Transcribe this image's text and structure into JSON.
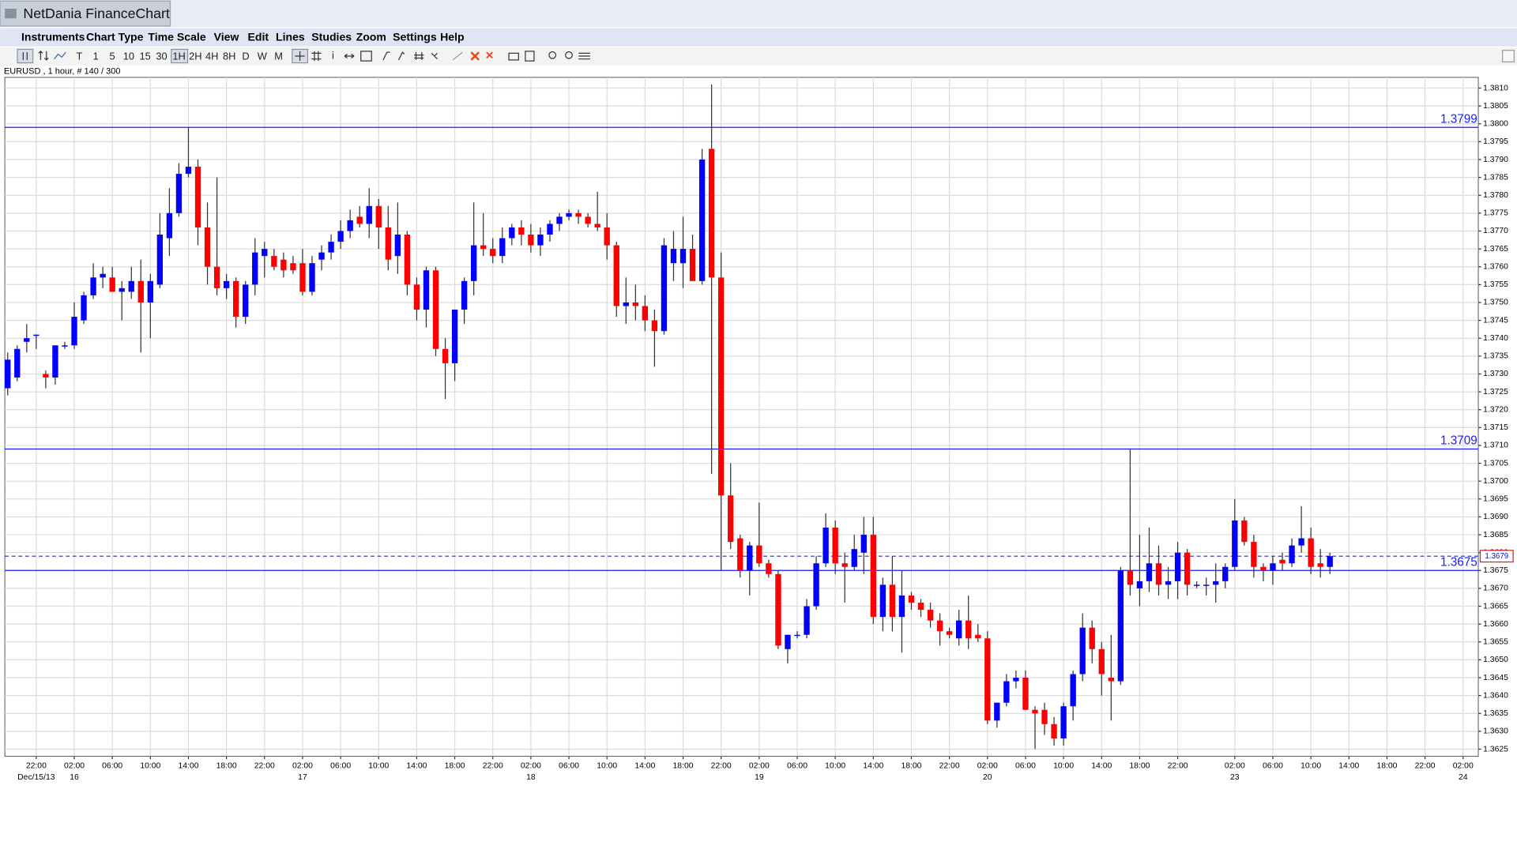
{
  "window": {
    "title": "NetDania FinanceChart"
  },
  "menu": [
    "Instruments",
    "Chart Type",
    "Time Scale",
    "View",
    "Edit",
    "Lines",
    "Studies",
    "Zoom",
    "Settings",
    "Help"
  ],
  "toolbar": [
    "T",
    "1",
    "5",
    "10",
    "15",
    "30",
    "1H",
    "2H",
    "4H",
    "8H",
    "D",
    "W",
    "M"
  ],
  "chart_data": {
    "type": "candlestick",
    "info": "EURUSD , 1 hour, # 140 / 300",
    "up_color": "#0000ff",
    "down_color": "#ff0000",
    "wick_color": "#333333",
    "line_color": "#1a1aff",
    "grid": true,
    "open": [
      1.3726,
      1.3729,
      1.3739,
      1.3741,
      1.373,
      1.3729,
      1.3738,
      1.3738,
      1.3745,
      1.3752,
      1.3757,
      1.3757,
      1.3753,
      1.3753,
      1.3756,
      1.375,
      1.3755,
      1.3768,
      1.3775,
      1.3786,
      1.3788,
      1.3771,
      1.376,
      1.3754,
      1.3756,
      1.3746,
      1.3755,
      1.3763,
      1.3763,
      1.3762,
      1.3761,
      1.3761,
      1.3753,
      1.3762,
      1.3764,
      1.3767,
      1.377,
      1.3774,
      1.3772,
      1.3777,
      1.3771,
      1.3763,
      1.3769,
      1.3755,
      1.3748,
      1.3759,
      1.3737,
      1.3733,
      1.3748,
      1.3756,
      1.3766,
      1.3765,
      1.3763,
      1.3768,
      1.3771,
      1.3769,
      1.3766,
      1.3769,
      1.3772,
      1.3774,
      1.3775,
      1.3774,
      1.3772,
      1.3771,
      1.3766,
      1.3749,
      1.375,
      1.3749,
      1.3745,
      1.3742,
      1.3761,
      1.3761,
      1.3765,
      1.3756,
      1.3793,
      1.3757,
      1.3696,
      1.3684,
      1.3675,
      1.3682,
      1.3677,
      1.3674,
      1.3653,
      1.3657,
      1.3657,
      1.3665,
      1.3677,
      1.3687,
      1.3677,
      1.3676,
      1.368,
      1.3685,
      1.3662,
      1.3671,
      1.3662,
      1.3668,
      1.3666,
      1.3664,
      1.3661,
      1.3658,
      1.3656,
      1.3661,
      1.3657,
      1.3656,
      1.3633,
      1.3638,
      1.3644,
      1.3645,
      1.3636,
      1.3636,
      1.3632,
      1.3628,
      1.3637,
      1.3646,
      1.3659,
      1.3653,
      1.3645,
      1.3644,
      1.3675,
      1.367,
      1.3672,
      1.3677,
      1.3671,
      1.3672,
      1.368,
      1.3671,
      1.3671,
      1.3671,
      1.3672,
      1.3676,
      1.3689,
      1.3683,
      1.3676,
      1.3675,
      1.3678,
      1.3677,
      1.3682,
      1.3684,
      1.3677,
      1.3676
    ],
    "high": [
      1.3736,
      1.3738,
      1.3744,
      1.3741,
      1.3731,
      1.3738,
      1.3739,
      1.375,
      1.3753,
      1.3761,
      1.376,
      1.376,
      1.3756,
      1.376,
      1.3762,
      1.3758,
      1.3775,
      1.3782,
      1.3789,
      1.3799,
      1.379,
      1.3778,
      1.3785,
      1.3758,
      1.3757,
      1.3756,
      1.3768,
      1.3767,
      1.3765,
      1.3764,
      1.3763,
      1.3765,
      1.3763,
      1.3766,
      1.3769,
      1.3773,
      1.3776,
      1.3777,
      1.3782,
      1.3779,
      1.3777,
      1.3778,
      1.377,
      1.3757,
      1.376,
      1.376,
      1.374,
      1.3748,
      1.3757,
      1.3778,
      1.3775,
      1.3768,
      1.3771,
      1.3772,
      1.3773,
      1.3772,
      1.3771,
      1.3773,
      1.3775,
      1.3776,
      1.3776,
      1.3775,
      1.3781,
      1.3775,
      1.3767,
      1.3757,
      1.3755,
      1.3752,
      1.3748,
      1.3768,
      1.377,
      1.3774,
      1.3769,
      1.3793,
      1.3811,
      1.3764,
      1.3705,
      1.3685,
      1.3683,
      1.3694,
      1.3678,
      1.3675,
      1.3657,
      1.3658,
      1.3667,
      1.3679,
      1.3691,
      1.3689,
      1.368,
      1.3685,
      1.369,
      1.369,
      1.3673,
      1.3679,
      1.3675,
      1.3669,
      1.3667,
      1.3666,
      1.3663,
      1.3659,
      1.3664,
      1.3668,
      1.366,
      1.3658,
      1.3638,
      1.3646,
      1.3647,
      1.3647,
      1.3637,
      1.3638,
      1.3634,
      1.3638,
      1.3647,
      1.3663,
      1.3661,
      1.3655,
      1.3657,
      1.3676,
      1.3709,
      1.3685,
      1.3687,
      1.3682,
      1.3676,
      1.3683,
      1.3681,
      1.3672,
      1.3673,
      1.3677,
      1.3677,
      1.3695,
      1.369,
      1.3685,
      1.3677,
      1.3679,
      1.368,
      1.3684,
      1.3693,
      1.3687,
      1.3681,
      1.368
    ],
    "low": [
      1.3724,
      1.3728,
      1.3736,
      1.3737,
      1.3726,
      1.3727,
      1.3737,
      1.3737,
      1.3744,
      1.3751,
      1.3754,
      1.3753,
      1.3745,
      1.3751,
      1.3736,
      1.374,
      1.3754,
      1.3763,
      1.3774,
      1.3785,
      1.3766,
      1.3755,
      1.3752,
      1.3751,
      1.3743,
      1.3744,
      1.3752,
      1.3757,
      1.3759,
      1.3757,
      1.3758,
      1.3752,
      1.3752,
      1.3759,
      1.3762,
      1.3765,
      1.3768,
      1.3771,
      1.3768,
      1.3765,
      1.3759,
      1.3758,
      1.3752,
      1.3745,
      1.3743,
      1.3735,
      1.3723,
      1.3728,
      1.3744,
      1.3752,
      1.3763,
      1.3761,
      1.3761,
      1.3766,
      1.3766,
      1.3764,
      1.3763,
      1.3767,
      1.377,
      1.3773,
      1.3772,
      1.3771,
      1.377,
      1.3762,
      1.3746,
      1.3744,
      1.3745,
      1.3742,
      1.3732,
      1.3741,
      1.3756,
      1.3754,
      1.3756,
      1.3755,
      1.3702,
      1.3675,
      1.3681,
      1.3673,
      1.3668,
      1.3676,
      1.3673,
      1.3653,
      1.3649,
      1.3656,
      1.3656,
      1.3664,
      1.3676,
      1.3674,
      1.3666,
      1.3675,
      1.3674,
      1.366,
      1.3658,
      1.3658,
      1.3652,
      1.3664,
      1.3662,
      1.3659,
      1.3654,
      1.3656,
      1.3654,
      1.3653,
      1.3655,
      1.3632,
      1.3631,
      1.3637,
      1.3642,
      1.3636,
      1.3625,
      1.3629,
      1.3626,
      1.3626,
      1.3633,
      1.3644,
      1.3649,
      1.364,
      1.3633,
      1.3643,
      1.3668,
      1.3665,
      1.3669,
      1.3668,
      1.3667,
      1.3667,
      1.3668,
      1.367,
      1.3668,
      1.3666,
      1.367,
      1.3675,
      1.3682,
      1.3673,
      1.3672,
      1.3671,
      1.3675,
      1.3676,
      1.368,
      1.3674,
      1.3673,
      1.3674
    ],
    "close": [
      1.3734,
      1.3737,
      1.374,
      1.3741,
      1.3729,
      1.3738,
      1.3738,
      1.3746,
      1.3752,
      1.3757,
      1.3758,
      1.3753,
      1.3754,
      1.3756,
      1.375,
      1.3756,
      1.3769,
      1.3775,
      1.3786,
      1.3788,
      1.3771,
      1.376,
      1.3754,
      1.3756,
      1.3746,
      1.3755,
      1.3764,
      1.3765,
      1.376,
      1.3759,
      1.3759,
      1.3753,
      1.3761,
      1.3764,
      1.3767,
      1.377,
      1.3773,
      1.3772,
      1.3777,
      1.3771,
      1.3762,
      1.3769,
      1.3755,
      1.3748,
      1.3759,
      1.3737,
      1.3733,
      1.3748,
      1.3756,
      1.3766,
      1.3765,
      1.3763,
      1.3768,
      1.3771,
      1.3769,
      1.3766,
      1.3769,
      1.3772,
      1.3774,
      1.3775,
      1.3774,
      1.3772,
      1.3771,
      1.3766,
      1.3749,
      1.375,
      1.3749,
      1.3745,
      1.3742,
      1.3766,
      1.3765,
      1.3765,
      1.3756,
      1.379,
      1.3757,
      1.3696,
      1.3683,
      1.3675,
      1.3682,
      1.3677,
      1.3674,
      1.3654,
      1.3657,
      1.3657,
      1.3665,
      1.3677,
      1.3687,
      1.3677,
      1.3676,
      1.3681,
      1.3685,
      1.3662,
      1.3671,
      1.3662,
      1.3668,
      1.3666,
      1.3664,
      1.3661,
      1.3658,
      1.3657,
      1.3661,
      1.3656,
      1.3656,
      1.3633,
      1.3638,
      1.3644,
      1.3645,
      1.3636,
      1.3635,
      1.3632,
      1.3628,
      1.3637,
      1.3646,
      1.3659,
      1.3653,
      1.3646,
      1.3644,
      1.3675,
      1.3671,
      1.3672,
      1.3677,
      1.3671,
      1.3672,
      1.368,
      1.3671,
      1.3671,
      1.3671,
      1.3672,
      1.3676,
      1.3689,
      1.3683,
      1.3676,
      1.3675,
      1.3677,
      1.3677,
      1.3682,
      1.3684,
      1.3676,
      1.3676,
      1.3679
    ],
    "hlines": [
      1.3799,
      1.3709,
      1.3675
    ],
    "last": 1.3679,
    "xlim": [
      -0.3,
      154.6
    ],
    "ylim": [
      1.3623,
      1.3813
    ],
    "yticks": [
      1.3625,
      {
        "value": 1.363,
        "label": "1.3630"
      },
      1.3635,
      {
        "value": 1.364,
        "label": "1.3640"
      },
      1.3645,
      {
        "value": 1.365,
        "label": "1.3650"
      },
      1.3655,
      {
        "value": 1.366,
        "label": "1.3660"
      },
      1.3665,
      {
        "value": 1.367,
        "label": "1.3670"
      },
      1.3675,
      {
        "value": 1.368,
        "label": "1.3680"
      },
      1.3685,
      {
        "value": 1.369,
        "label": "1.3690"
      },
      1.3695,
      {
        "value": 1.37,
        "label": "1.3700"
      },
      1.3705,
      {
        "value": 1.371,
        "label": "1.3710"
      },
      1.3715,
      {
        "value": 1.372,
        "label": "1.3720"
      },
      1.3725,
      {
        "value": 1.373,
        "label": "1.3730"
      },
      1.3735,
      {
        "value": 1.374,
        "label": "1.3740"
      },
      1.3745,
      {
        "value": 1.375,
        "label": "1.3750"
      },
      1.3755,
      {
        "value": 1.376,
        "label": "1.3760"
      },
      1.3765,
      {
        "value": 1.377,
        "label": "1.3770"
      },
      1.3775,
      {
        "value": 1.378,
        "label": "1.3780"
      },
      1.3785,
      {
        "value": 1.379,
        "label": "1.3790"
      },
      1.3795,
      {
        "value": 1.38,
        "label": "1.3800"
      },
      1.3805,
      {
        "value": 1.381,
        "label": "1.3810"
      }
    ],
    "xticks": [
      {
        "value": 3,
        "label": "22:00"
      },
      {
        "value": 7,
        "label": "02:00"
      },
      {
        "value": 11,
        "label": "06:00"
      },
      {
        "value": 15,
        "label": "10:00"
      },
      {
        "value": 19,
        "label": "14:00"
      },
      {
        "value": 23,
        "label": "18:00"
      },
      {
        "value": 27,
        "label": "22:00"
      },
      {
        "value": 31,
        "label": "02:00"
      },
      {
        "value": 35,
        "label": "06:00"
      },
      {
        "value": 39,
        "label": "10:00"
      },
      {
        "value": 43,
        "label": "14:00"
      },
      {
        "value": 47,
        "label": "18:00"
      },
      {
        "value": 51,
        "label": "22:00"
      },
      {
        "value": 55,
        "label": "02:00"
      },
      {
        "value": 59,
        "label": "06:00"
      },
      {
        "value": 63,
        "label": "10:00"
      },
      {
        "value": 67,
        "label": "14:00"
      },
      {
        "value": 71,
        "label": "18:00"
      },
      {
        "value": 75,
        "label": "22:00"
      },
      {
        "value": 79,
        "label": "02:00"
      },
      {
        "value": 83,
        "label": "06:00"
      },
      {
        "value": 87,
        "label": "10:00"
      },
      {
        "value": 91,
        "label": "14:00"
      },
      {
        "value": 95,
        "label": "18:00"
      },
      {
        "value": 99,
        "label": "22:00"
      },
      {
        "value": 103,
        "label": "02:00"
      },
      {
        "value": 107,
        "label": "06:00"
      },
      {
        "value": 111,
        "label": "10:00"
      },
      {
        "value": 115,
        "label": "14:00"
      },
      {
        "value": 119,
        "label": "18:00"
      },
      {
        "value": 123,
        "label": "22:00"
      },
      {
        "value": 129,
        "label": "02:00"
      },
      {
        "value": 133,
        "label": "06:00"
      },
      {
        "value": 137,
        "label": "10:00"
      },
      {
        "value": 141,
        "label": "14:00"
      },
      {
        "value": 145,
        "label": "18:00"
      },
      {
        "value": 149,
        "label": "22:00"
      },
      {
        "value": 153,
        "label": "02:00"
      }
    ],
    "date_ticks": [
      {
        "value": 3,
        "label": "Dec/15/13"
      },
      {
        "value": 7,
        "label": "16"
      },
      {
        "value": 31,
        "label": "17"
      },
      {
        "value": 55,
        "label": "18"
      },
      {
        "value": 79,
        "label": "19"
      },
      {
        "value": 103,
        "label": "20"
      },
      {
        "value": 129,
        "label": "23"
      },
      {
        "value": 153,
        "label": "24"
      }
    ]
  }
}
